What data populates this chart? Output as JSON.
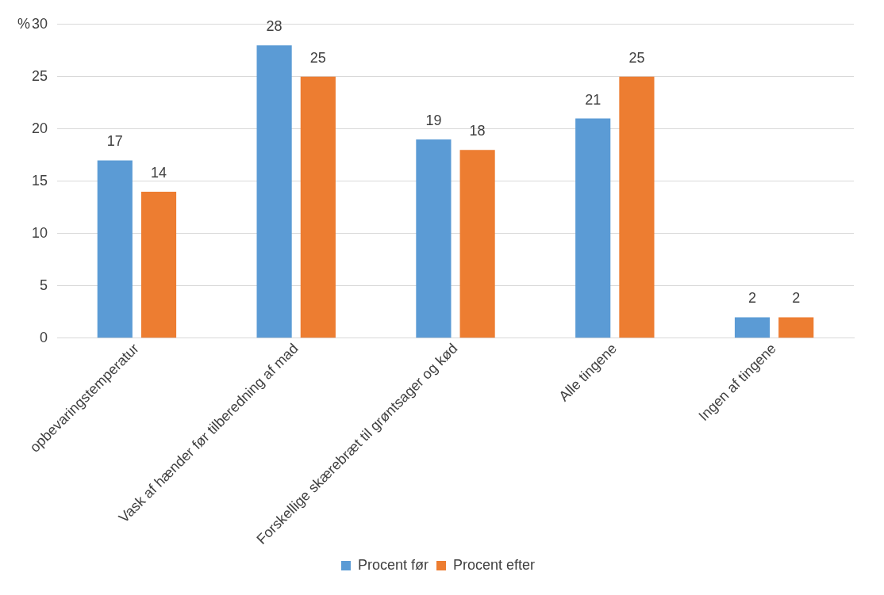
{
  "chart_data": {
    "type": "bar",
    "ylabel": "%",
    "categories": [
      "opbevaringstemperatur",
      "Vask af hænder før tilberedning af mad",
      "Forskellige skærebræt til grøntsager og kød",
      "Alle tingene",
      "Ingen af tingene"
    ],
    "series": [
      {
        "name": "Procent før",
        "color": "#5b9bd5",
        "values": [
          17,
          28,
          19,
          21,
          2
        ]
      },
      {
        "name": "Procent efter",
        "color": "#ed7d31",
        "values": [
          14,
          25,
          18,
          25,
          2
        ]
      }
    ],
    "ylim": [
      0,
      30
    ],
    "yticks": [
      0,
      5,
      10,
      15,
      20,
      25,
      30
    ],
    "grid": "y",
    "legend": "bottom",
    "data_labels": true
  }
}
